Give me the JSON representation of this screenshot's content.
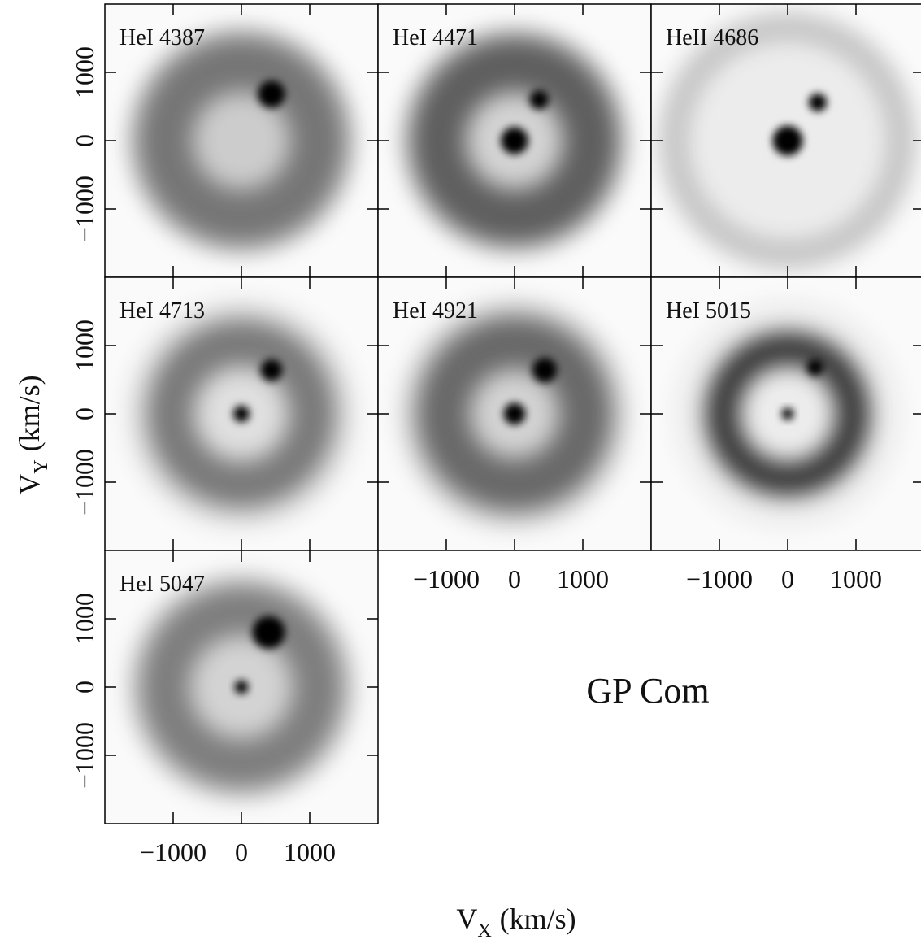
{
  "figure": {
    "title": "GP Com",
    "xlabel": {
      "symbol": "V",
      "subscript": "X",
      "unit": "(km/s)"
    },
    "ylabel": {
      "symbol": "V",
      "subscript": "Y",
      "unit": "(km/s)"
    }
  },
  "chart_data": [
    {
      "type": "image",
      "title": "HeI 4387",
      "xlim": [
        -2000,
        2000
      ],
      "ylim": [
        -2000,
        2000
      ],
      "xticks": [
        {
          "value": -1000,
          "label": "−1000"
        },
        0,
        1000
      ],
      "yticks": [
        {
          "value": -1000,
          "label": "−1000"
        },
        0,
        1000
      ]
    },
    {
      "type": "image",
      "title": "HeI 4471",
      "xlim": [
        -2000,
        2000
      ],
      "ylim": [
        -2000,
        2000
      ],
      "xticks": [
        {
          "value": -1000,
          "label": "−1000"
        },
        0,
        1000
      ],
      "yticks": [
        {
          "value": -1000,
          "label": "−1000"
        },
        0,
        1000
      ]
    },
    {
      "type": "image",
      "title": "HeII 4686",
      "xlim": [
        -2000,
        2000
      ],
      "ylim": [
        -2000,
        2000
      ],
      "xticks": [
        {
          "value": -1000,
          "label": "−1000"
        },
        0,
        1000
      ],
      "yticks": [
        {
          "value": -1000,
          "label": "−1000"
        },
        0,
        1000
      ]
    },
    {
      "type": "image",
      "title": "HeI 4713",
      "xlim": [
        -2000,
        2000
      ],
      "ylim": [
        -2000,
        2000
      ],
      "xticks": [
        {
          "value": -1000,
          "label": "−1000"
        },
        0,
        1000
      ],
      "yticks": [
        {
          "value": -1000,
          "label": "−1000"
        },
        0,
        1000
      ]
    },
    {
      "type": "image",
      "title": "HeI 4921",
      "xlim": [
        -2000,
        2000
      ],
      "ylim": [
        -2000,
        2000
      ],
      "xticks": [
        {
          "value": -1000,
          "label": "−1000"
        },
        0,
        1000
      ],
      "yticks": [
        {
          "value": -1000,
          "label": "−1000"
        },
        0,
        1000
      ]
    },
    {
      "type": "image",
      "title": "HeI 5015",
      "xlim": [
        -2000,
        2000
      ],
      "ylim": [
        -2000,
        2000
      ],
      "xticks": [
        {
          "value": -1000,
          "label": "−1000"
        },
        0,
        1000
      ],
      "yticks": [
        {
          "value": -1000,
          "label": "−1000"
        },
        0,
        1000
      ]
    },
    {
      "type": "image",
      "title": "HeI 5047",
      "xlim": [
        -2000,
        2000
      ],
      "ylim": [
        -2000,
        2000
      ],
      "xticks": [
        {
          "value": -1000,
          "label": "−1000"
        },
        0,
        1000
      ],
      "yticks": [
        {
          "value": -1000,
          "label": "−1000"
        },
        0,
        1000
      ]
    }
  ]
}
